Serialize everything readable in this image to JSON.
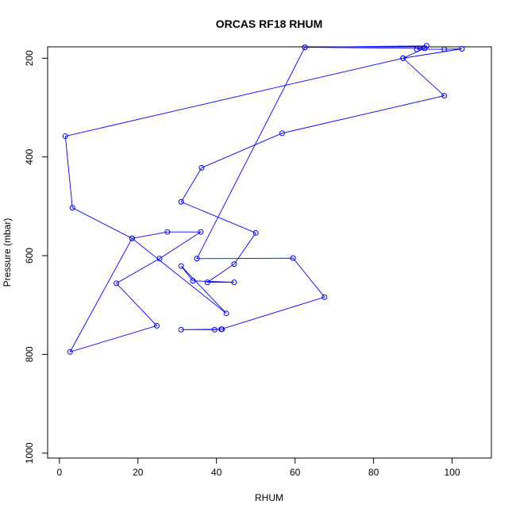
{
  "chart_data": {
    "type": "line",
    "title": "ORCAS RF18 RHUM",
    "xlabel": "RHUM",
    "ylabel": "Pressure (mbar)",
    "xlim": [
      -3,
      110
    ],
    "ylim": [
      1010,
      177
    ],
    "y_reversed": true,
    "grid": false,
    "x_ticks": [
      0,
      20,
      40,
      60,
      80,
      100
    ],
    "y_ticks": [
      200,
      400,
      600,
      800,
      1000
    ],
    "x_tick_labels": [
      "0",
      "20",
      "40",
      "60",
      "80",
      "100"
    ],
    "y_tick_labels": [
      "200",
      "400",
      "600",
      "800",
      "1000"
    ],
    "color": "#0000ff",
    "marker": "open-circle",
    "points": [
      {
        "x": 62.5,
        "y": 178
      },
      {
        "x": 93.5,
        "y": 175
      },
      {
        "x": 91,
        "y": 182
      },
      {
        "x": 98,
        "y": 182
      },
      {
        "x": 102.5,
        "y": 181
      },
      {
        "x": 87.5,
        "y": 200
      },
      {
        "x": 1.5,
        "y": 358
      },
      {
        "x": 3.3,
        "y": 503
      },
      {
        "x": 18.5,
        "y": 565
      },
      {
        "x": 27.5,
        "y": 552
      },
      {
        "x": 36,
        "y": 552
      },
      {
        "x": 25.5,
        "y": 606
      },
      {
        "x": 14.5,
        "y": 656
      },
      {
        "x": 24.8,
        "y": 742
      },
      {
        "x": 2.7,
        "y": 795
      },
      {
        "x": 18.5,
        "y": 565
      },
      {
        "x": 42.5,
        "y": 717
      },
      {
        "x": 31,
        "y": 621
      },
      {
        "x": 34,
        "y": 651
      },
      {
        "x": 44.5,
        "y": 654
      },
      {
        "x": 37.7,
        "y": 654
      },
      {
        "x": 44.5,
        "y": 617
      },
      {
        "x": 50,
        "y": 554
      },
      {
        "x": 31,
        "y": 491
      },
      {
        "x": 36.2,
        "y": 422
      },
      {
        "x": 56.7,
        "y": 352
      },
      {
        "x": 98,
        "y": 276
      },
      {
        "x": 87.5,
        "y": 200
      },
      {
        "x": 93,
        "y": 180
      },
      {
        "x": 62.5,
        "y": 178
      },
      {
        "x": 35,
        "y": 606
      },
      {
        "x": 59.5,
        "y": 605
      },
      {
        "x": 67.5,
        "y": 684
      },
      {
        "x": 41.2,
        "y": 749
      },
      {
        "x": 39.5,
        "y": 750
      },
      {
        "x": 31,
        "y": 750
      },
      {
        "x": 41.4,
        "y": 749
      }
    ]
  }
}
